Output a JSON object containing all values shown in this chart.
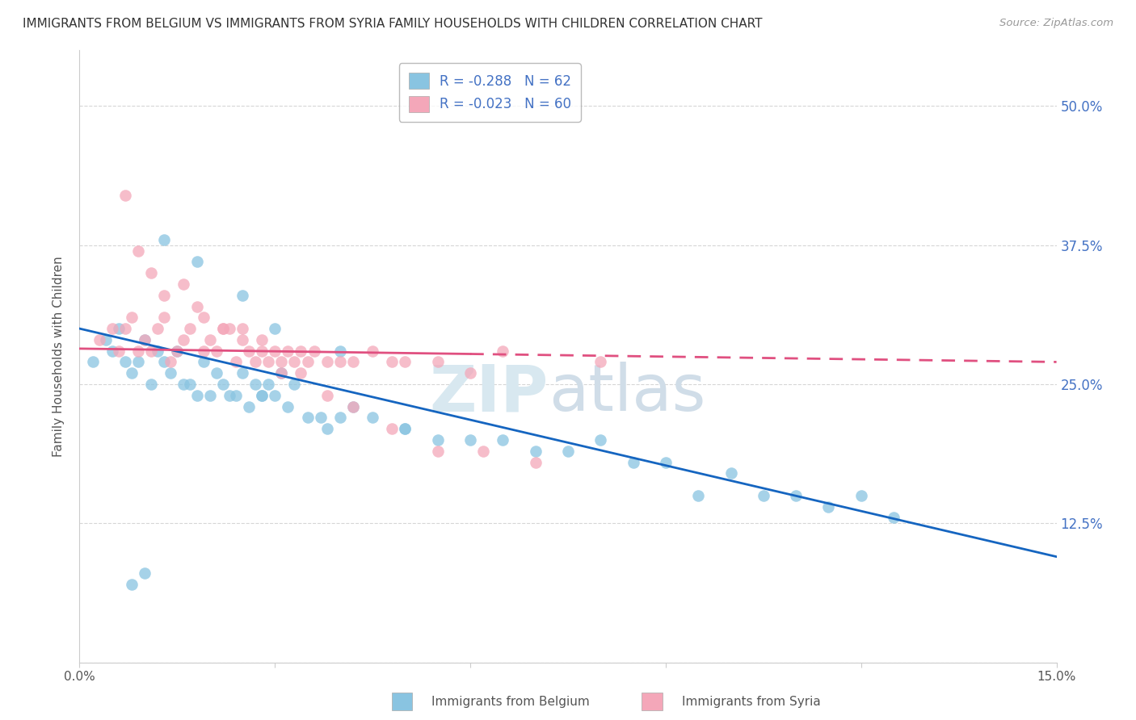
{
  "title": "IMMIGRANTS FROM BELGIUM VS IMMIGRANTS FROM SYRIA FAMILY HOUSEHOLDS WITH CHILDREN CORRELATION CHART",
  "source": "Source: ZipAtlas.com",
  "ylabel": "Family Households with Children",
  "legend_belgium": "Immigrants from Belgium",
  "legend_syria": "Immigrants from Syria",
  "belgium_R": -0.288,
  "belgium_N": 62,
  "syria_R": -0.023,
  "syria_N": 60,
  "xlim": [
    0.0,
    0.15
  ],
  "ylim": [
    0.0,
    0.55
  ],
  "xticks": [
    0.0,
    0.03,
    0.06,
    0.09,
    0.12,
    0.15
  ],
  "xtick_labels": [
    "0.0%",
    "",
    "",
    "",
    "",
    "15.0%"
  ],
  "yticks": [
    0.0,
    0.125,
    0.25,
    0.375,
    0.5
  ],
  "ytick_labels": [
    "",
    "12.5%",
    "25.0%",
    "37.5%",
    "50.0%"
  ],
  "color_belgium": "#89c4e1",
  "color_syria": "#f4a7b9",
  "color_belgium_line": "#1565c0",
  "color_syria_line": "#e05080",
  "background_color": "#ffffff",
  "belgium_scatter_x": [
    0.002,
    0.004,
    0.005,
    0.006,
    0.007,
    0.008,
    0.009,
    0.01,
    0.011,
    0.012,
    0.013,
    0.014,
    0.015,
    0.016,
    0.017,
    0.018,
    0.019,
    0.02,
    0.021,
    0.022,
    0.023,
    0.024,
    0.025,
    0.026,
    0.027,
    0.028,
    0.029,
    0.03,
    0.031,
    0.032,
    0.033,
    0.035,
    0.037,
    0.04,
    0.042,
    0.045,
    0.05,
    0.055,
    0.06,
    0.065,
    0.07,
    0.075,
    0.08,
    0.085,
    0.09,
    0.095,
    0.1,
    0.105,
    0.11,
    0.115,
    0.12,
    0.125,
    0.013,
    0.018,
    0.025,
    0.03,
    0.04,
    0.05,
    0.038,
    0.028,
    0.008,
    0.01
  ],
  "belgium_scatter_y": [
    0.27,
    0.29,
    0.28,
    0.3,
    0.27,
    0.26,
    0.27,
    0.29,
    0.25,
    0.28,
    0.27,
    0.26,
    0.28,
    0.25,
    0.25,
    0.24,
    0.27,
    0.24,
    0.26,
    0.25,
    0.24,
    0.24,
    0.26,
    0.23,
    0.25,
    0.24,
    0.25,
    0.24,
    0.26,
    0.23,
    0.25,
    0.22,
    0.22,
    0.22,
    0.23,
    0.22,
    0.21,
    0.2,
    0.2,
    0.2,
    0.19,
    0.19,
    0.2,
    0.18,
    0.18,
    0.15,
    0.17,
    0.15,
    0.15,
    0.14,
    0.15,
    0.13,
    0.38,
    0.36,
    0.33,
    0.3,
    0.28,
    0.21,
    0.21,
    0.24,
    0.07,
    0.08
  ],
  "syria_scatter_x": [
    0.003,
    0.005,
    0.006,
    0.007,
    0.008,
    0.009,
    0.01,
    0.011,
    0.012,
    0.013,
    0.014,
    0.015,
    0.016,
    0.017,
    0.018,
    0.019,
    0.02,
    0.021,
    0.022,
    0.023,
    0.024,
    0.025,
    0.026,
    0.027,
    0.028,
    0.029,
    0.03,
    0.031,
    0.032,
    0.033,
    0.034,
    0.035,
    0.036,
    0.038,
    0.04,
    0.042,
    0.045,
    0.048,
    0.05,
    0.055,
    0.06,
    0.065,
    0.007,
    0.009,
    0.011,
    0.013,
    0.016,
    0.019,
    0.022,
    0.025,
    0.028,
    0.031,
    0.034,
    0.038,
    0.042,
    0.048,
    0.055,
    0.062,
    0.07,
    0.08
  ],
  "syria_scatter_y": [
    0.29,
    0.3,
    0.28,
    0.3,
    0.31,
    0.28,
    0.29,
    0.28,
    0.3,
    0.31,
    0.27,
    0.28,
    0.29,
    0.3,
    0.32,
    0.28,
    0.29,
    0.28,
    0.3,
    0.3,
    0.27,
    0.29,
    0.28,
    0.27,
    0.28,
    0.27,
    0.28,
    0.26,
    0.28,
    0.27,
    0.28,
    0.27,
    0.28,
    0.27,
    0.27,
    0.27,
    0.28,
    0.27,
    0.27,
    0.27,
    0.26,
    0.28,
    0.42,
    0.37,
    0.35,
    0.33,
    0.34,
    0.31,
    0.3,
    0.3,
    0.29,
    0.27,
    0.26,
    0.24,
    0.23,
    0.21,
    0.19,
    0.19,
    0.18,
    0.27
  ],
  "belgium_line_x": [
    0.0,
    0.15
  ],
  "belgium_line_y": [
    0.3,
    0.095
  ],
  "syria_line_x": [
    0.0,
    0.15
  ],
  "syria_line_y": [
    0.282,
    0.27
  ]
}
